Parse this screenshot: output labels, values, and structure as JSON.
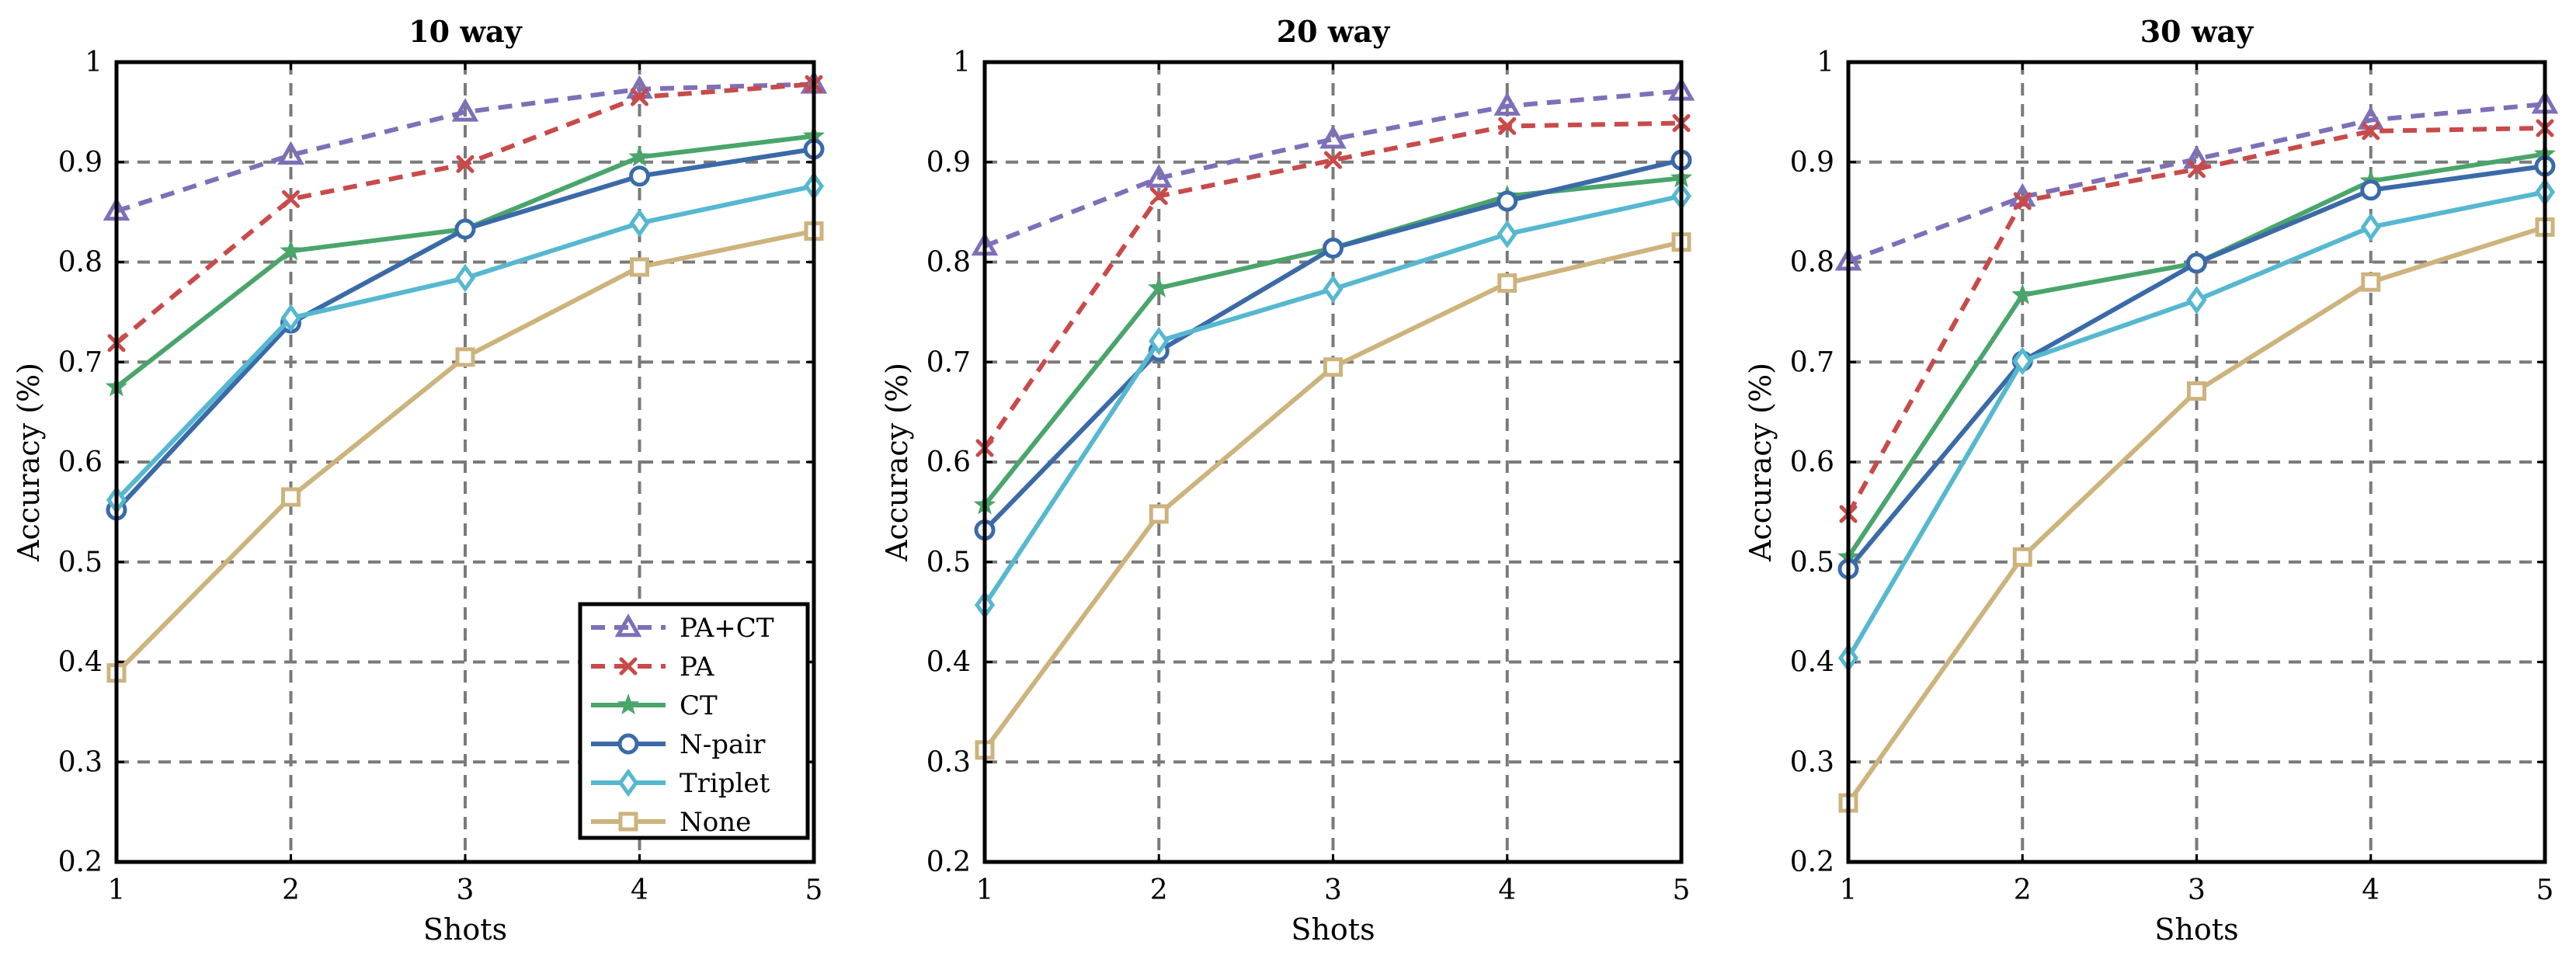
{
  "chart_data": [
    {
      "type": "line",
      "title": "10 way",
      "xlabel": "Shots",
      "ylabel": "Accuracy (%)",
      "x": [
        1,
        2,
        3,
        4,
        5
      ],
      "xticks": [
        "1",
        "2",
        "3",
        "4",
        "5"
      ],
      "ylim": [
        0.2,
        1.0
      ],
      "yticks": [
        "0.2",
        "0.3",
        "0.4",
        "0.5",
        "0.6",
        "0.7",
        "0.8",
        "0.9",
        "1"
      ],
      "grid": true,
      "legend": "bottom-right",
      "series": [
        {
          "name": "PA+CT",
          "values": [
            0.851,
            0.907,
            0.95,
            0.973,
            0.978
          ]
        },
        {
          "name": "PA",
          "values": [
            0.719,
            0.863,
            0.898,
            0.965,
            0.978
          ]
        },
        {
          "name": "CT",
          "values": [
            0.675,
            0.811,
            0.833,
            0.905,
            0.926
          ]
        },
        {
          "name": "N-pair",
          "values": [
            0.552,
            0.739,
            0.833,
            0.886,
            0.913
          ]
        },
        {
          "name": "Triplet",
          "values": [
            0.562,
            0.744,
            0.784,
            0.839,
            0.876
          ]
        },
        {
          "name": "None",
          "values": [
            0.389,
            0.565,
            0.705,
            0.795,
            0.831
          ]
        }
      ]
    },
    {
      "type": "line",
      "title": "20 way",
      "xlabel": "Shots",
      "ylabel": "Accuracy (%)",
      "x": [
        1,
        2,
        3,
        4,
        5
      ],
      "xticks": [
        "1",
        "2",
        "3",
        "4",
        "5"
      ],
      "ylim": [
        0.2,
        1.0
      ],
      "yticks": [
        "0.2",
        "0.3",
        "0.4",
        "0.5",
        "0.6",
        "0.7",
        "0.8",
        "0.9",
        "1"
      ],
      "grid": true,
      "series": [
        {
          "name": "PA+CT",
          "values": [
            0.816,
            0.884,
            0.923,
            0.956,
            0.971
          ]
        },
        {
          "name": "PA",
          "values": [
            0.614,
            0.866,
            0.902,
            0.936,
            0.939
          ]
        },
        {
          "name": "CT",
          "values": [
            0.557,
            0.774,
            0.814,
            0.866,
            0.884
          ]
        },
        {
          "name": "N-pair",
          "values": [
            0.532,
            0.711,
            0.814,
            0.861,
            0.902
          ]
        },
        {
          "name": "Triplet",
          "values": [
            0.457,
            0.721,
            0.773,
            0.828,
            0.866
          ]
        },
        {
          "name": "None",
          "values": [
            0.312,
            0.548,
            0.695,
            0.779,
            0.82
          ]
        }
      ]
    },
    {
      "type": "line",
      "title": "30 way",
      "xlabel": "Shots",
      "ylabel": "Accuracy (%)",
      "x": [
        1,
        2,
        3,
        4,
        5
      ],
      "xticks": [
        "1",
        "2",
        "3",
        "4",
        "5"
      ],
      "ylim": [
        0.2,
        1.0
      ],
      "yticks": [
        "0.2",
        "0.3",
        "0.4",
        "0.5",
        "0.6",
        "0.7",
        "0.8",
        "0.9",
        "1"
      ],
      "grid": true,
      "series": [
        {
          "name": "PA+CT",
          "values": [
            0.801,
            0.865,
            0.903,
            0.942,
            0.958
          ]
        },
        {
          "name": "PA",
          "values": [
            0.548,
            0.861,
            0.893,
            0.931,
            0.934
          ]
        },
        {
          "name": "CT",
          "values": [
            0.505,
            0.767,
            0.799,
            0.881,
            0.908
          ]
        },
        {
          "name": "N-pair",
          "values": [
            0.493,
            0.701,
            0.799,
            0.872,
            0.896
          ]
        },
        {
          "name": "Triplet",
          "values": [
            0.404,
            0.701,
            0.762,
            0.835,
            0.87
          ]
        },
        {
          "name": "None",
          "values": [
            0.259,
            0.505,
            0.671,
            0.78,
            0.835
          ]
        }
      ]
    }
  ],
  "styles": {
    "PA+CT": {
      "color": "#7f6fb8",
      "dash": true,
      "marker": "triangle"
    },
    "PA": {
      "color": "#c94a4a",
      "dash": true,
      "marker": "cross"
    },
    "CT": {
      "color": "#4aa56b",
      "dash": false,
      "marker": "star"
    },
    "N-pair": {
      "color": "#3a6aa8",
      "dash": false,
      "marker": "circle"
    },
    "Triplet": {
      "color": "#56b8d0",
      "dash": false,
      "marker": "diamond"
    },
    "None": {
      "color": "#cdb37c",
      "dash": false,
      "marker": "square"
    }
  }
}
